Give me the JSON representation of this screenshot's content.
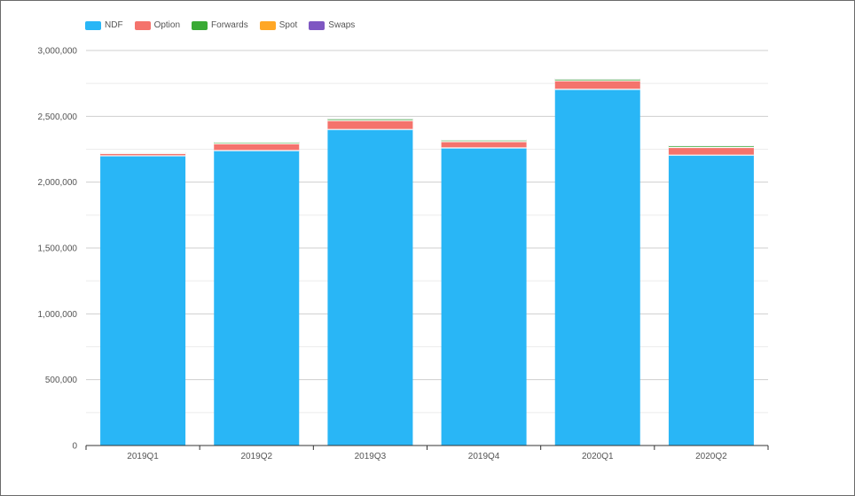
{
  "chart_data": {
    "type": "bar",
    "stacked": true,
    "title": "",
    "xlabel": "",
    "ylabel": "",
    "categories": [
      "2019Q1",
      "2019Q2",
      "2019Q3",
      "2019Q4",
      "2020Q1",
      "2020Q2"
    ],
    "ylim": [
      0,
      3000000
    ],
    "yticks": [
      0,
      500000,
      1000000,
      1500000,
      2000000,
      2500000,
      3000000
    ],
    "ytick_labels": [
      "0",
      "500,000",
      "1,000,000",
      "1,500,000",
      "2,000,000",
      "2,500,000",
      "3,000,000"
    ],
    "grid": true,
    "legend_position": "top-left",
    "series": [
      {
        "name": "NDF",
        "color": "#29b6f6",
        "values": [
          2200000,
          2240000,
          2400000,
          2260000,
          2705000,
          2205000
        ]
      },
      {
        "name": "Option",
        "color": "#f4736c",
        "values": [
          18000,
          52000,
          68000,
          48000,
          65000,
          58000
        ]
      },
      {
        "name": "Forwards",
        "color": "#3aaa35",
        "values": [
          7000,
          12000,
          13000,
          12000,
          13000,
          13000
        ]
      },
      {
        "name": "Spot",
        "color": "#ffa726",
        "values": [
          2000,
          3000,
          3000,
          3000,
          3000,
          3000
        ]
      },
      {
        "name": "Swaps",
        "color": "#7e57c2",
        "values": [
          1000,
          1000,
          1000,
          1000,
          1000,
          1000
        ]
      }
    ]
  }
}
